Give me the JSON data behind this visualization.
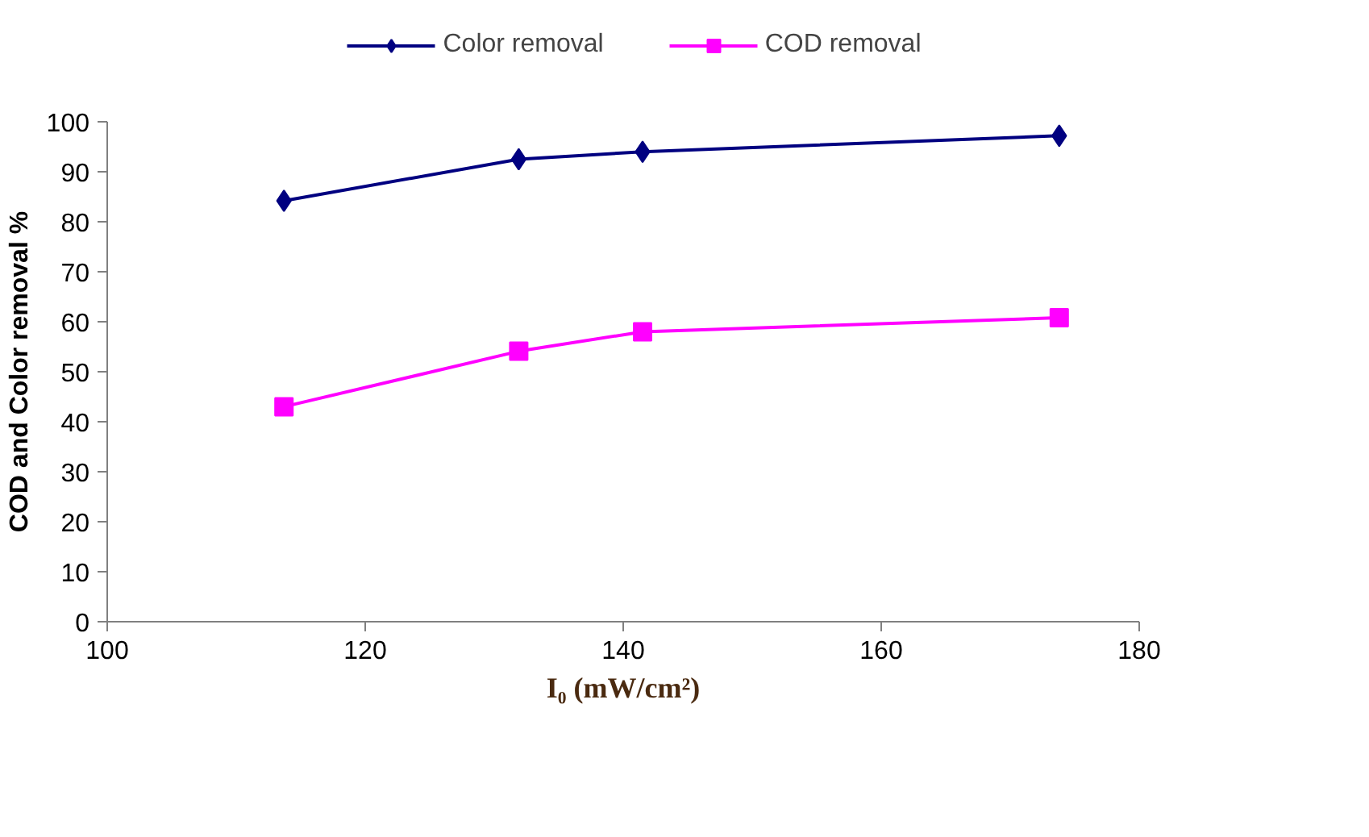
{
  "chart_data": {
    "type": "line",
    "xlabel": "I₀ (mW/cm²)",
    "ylabel": "COD and Color removal %",
    "x": [
      113.7,
      131.9,
      141.5,
      173.8
    ],
    "series": [
      {
        "name": "Color removal",
        "color": "#000080",
        "marker": "diamond",
        "values": [
          84.2,
          92.5,
          94,
          97.2
        ]
      },
      {
        "name": "COD removal",
        "color": "#ff00ff",
        "marker": "square",
        "values": [
          43,
          54.1,
          58,
          60.8
        ]
      }
    ],
    "xlim": [
      100,
      180
    ],
    "xticks": [
      100,
      120,
      140,
      160,
      180
    ],
    "ylim": [
      0,
      100
    ],
    "yticks": [
      0,
      10,
      20,
      30,
      40,
      50,
      60,
      70,
      80,
      90,
      100
    ],
    "grid": false,
    "legend": "top",
    "line_style": "solid"
  }
}
